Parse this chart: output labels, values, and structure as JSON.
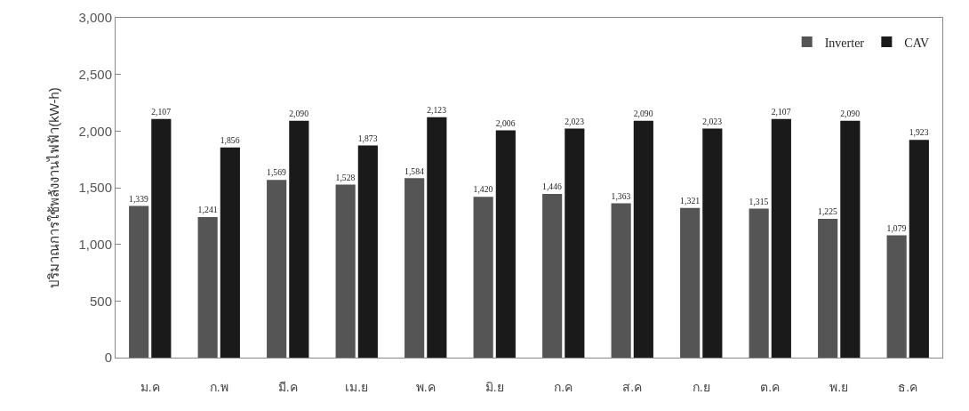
{
  "chart_data": {
    "type": "bar",
    "ylabel": "ปริมาณการใช้พลังงานไฟฟ้า(kW-h)",
    "categories": [
      "ม.ค",
      "ก.พ",
      "มี.ค",
      "เม.ย",
      "พ.ค",
      "มิ.ย",
      "ก.ค",
      "ส.ค",
      "ก.ย",
      "ต.ค",
      "พ.ย",
      "ธ.ค"
    ],
    "series": [
      {
        "name": "Inverter",
        "color": "#555555",
        "values": [
          1339,
          1241,
          1569,
          1528,
          1584,
          1420,
          1446,
          1363,
          1321,
          1315,
          1225,
          1079
        ],
        "value_labels": [
          "1,339",
          "1,241",
          "1,569",
          "1,528",
          "1,584",
          "1,420",
          "1,446",
          "1,363",
          "1,321",
          "1,315",
          "1,225",
          "1,079"
        ]
      },
      {
        "name": "CAV",
        "color": "#1a1a1a",
        "values": [
          2107,
          1856,
          2090,
          1873,
          2123,
          2006,
          2023,
          2090,
          2023,
          2107,
          2090,
          1923
        ],
        "value_labels": [
          "2,107",
          "1,856",
          "2,090",
          "1,873",
          "2,123",
          "2,006",
          "2,023",
          "2,090",
          "2,023",
          "2,107",
          "2,090",
          "1,923"
        ]
      }
    ],
    "ylim": [
      0,
      3000
    ],
    "yticks": [
      0,
      {
        "value": 500,
        "label": "500"
      },
      {
        "value": 1000,
        "label": "1,000"
      },
      {
        "value": 1500,
        "label": "1,500"
      },
      {
        "value": 2000,
        "label": "2,000"
      },
      {
        "value": 2500,
        "label": "2,500"
      },
      {
        "value": 3000,
        "label": "3,000"
      }
    ],
    "grid": false,
    "legend": "top right"
  }
}
